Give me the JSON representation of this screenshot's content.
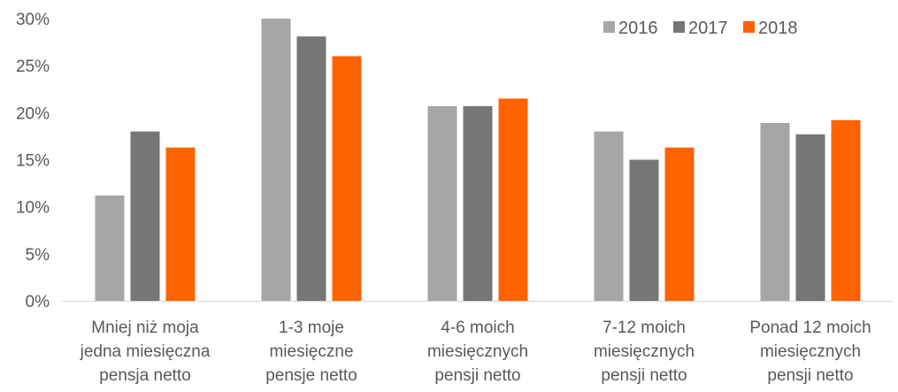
{
  "chart_data": {
    "type": "bar",
    "title": "",
    "xlabel": "",
    "ylabel": "",
    "ylim": [
      0,
      30
    ],
    "yticks": [
      "0%",
      "5%",
      "10%",
      "15%",
      "20%",
      "25%",
      "30%"
    ],
    "ytick_values": [
      0,
      5,
      10,
      15,
      20,
      25,
      30
    ],
    "grid": false,
    "legend_position": "top-right",
    "categories": [
      [
        "Mniej niż moja",
        "jedna miesięczna",
        "pensja netto"
      ],
      [
        "1-3 moje",
        "miesięczne",
        "pensje netto"
      ],
      [
        "4-6 moich",
        "miesięcznych",
        "pensji netto"
      ],
      [
        "7-12 moich",
        "miesięcznych",
        "pensji netto"
      ],
      [
        "Ponad 12 moich",
        "miesięcznych",
        "pensji netto"
      ]
    ],
    "series": [
      {
        "name": "2016",
        "color": "#a6a6a6",
        "values": [
          11.2,
          30.0,
          20.7,
          18.0,
          18.9
        ]
      },
      {
        "name": "2017",
        "color": "#767676",
        "values": [
          18.0,
          28.1,
          20.7,
          15.0,
          17.7
        ]
      },
      {
        "name": "2018",
        "color": "#ff6200",
        "values": [
          16.3,
          26.0,
          21.5,
          16.3,
          19.2
        ]
      }
    ]
  }
}
